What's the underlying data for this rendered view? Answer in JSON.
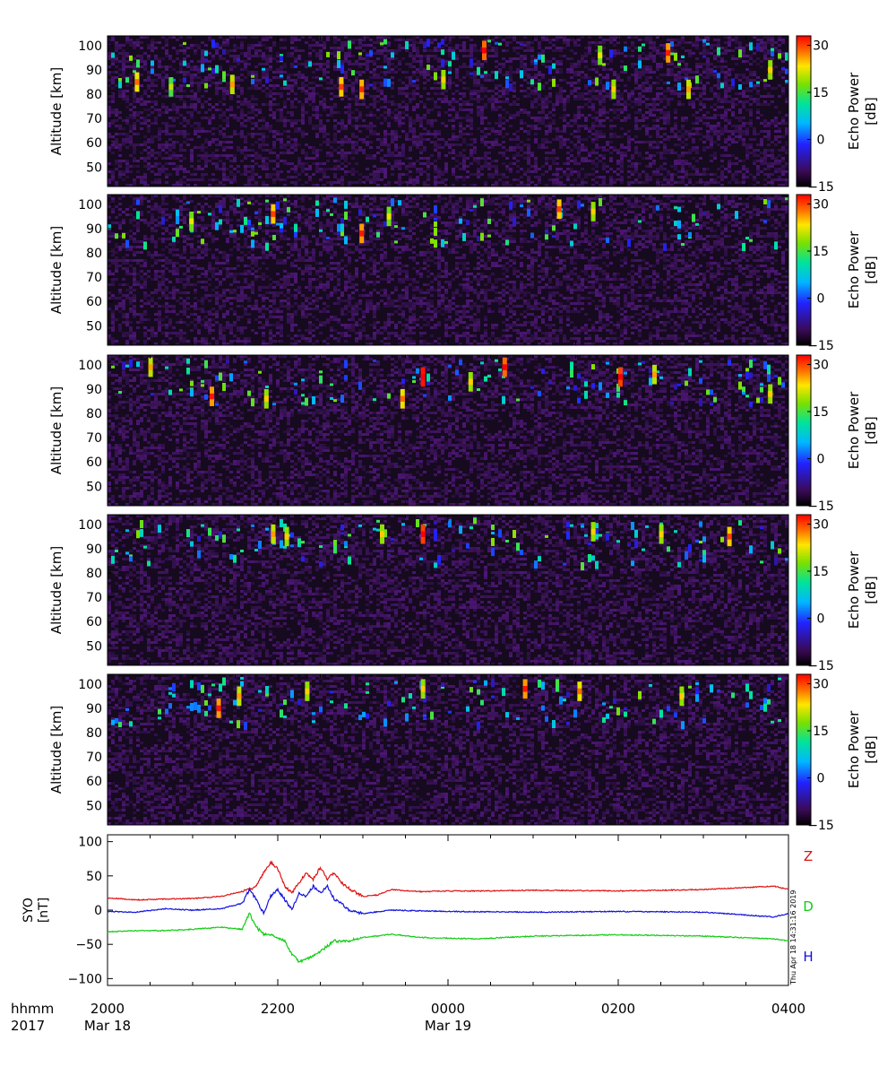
{
  "figure": {
    "time_label_row1": "hhmm",
    "time_label_row2": "2017",
    "stamp": "Thu Apr 18 14:31:16 2019"
  },
  "chart_data": [
    {
      "type": "heatmap",
      "panel": 1,
      "ylabel": "Altitude [km]",
      "yticks": [
        50,
        60,
        70,
        80,
        90,
        100
      ],
      "ylim": [
        42,
        104
      ],
      "colorbar": {
        "label": "Echo Power",
        "unit": "[dB]",
        "ticks": [
          30,
          15,
          0,
          -15
        ],
        "range": [
          -15,
          33
        ]
      },
      "features": [
        {
          "x": 0.04,
          "alt": 85,
          "db": 22
        },
        {
          "x": 0.09,
          "alt": 83,
          "db": 14
        },
        {
          "x": 0.18,
          "alt": 84,
          "db": 20
        },
        {
          "x": 0.34,
          "alt": 83,
          "db": 24
        },
        {
          "x": 0.37,
          "alt": 82,
          "db": 25
        },
        {
          "x": 0.49,
          "alt": 86,
          "db": 18
        },
        {
          "x": 0.55,
          "alt": 98,
          "db": 28
        },
        {
          "x": 0.72,
          "alt": 96,
          "db": 16
        },
        {
          "x": 0.74,
          "alt": 82,
          "db": 18
        },
        {
          "x": 0.82,
          "alt": 97,
          "db": 26
        },
        {
          "x": 0.85,
          "alt": 82,
          "db": 20
        },
        {
          "x": 0.97,
          "alt": 90,
          "db": 18
        }
      ]
    },
    {
      "type": "heatmap",
      "panel": 2,
      "ylabel": "Altitude [km]",
      "yticks": [
        50,
        60,
        70,
        80,
        90,
        100
      ],
      "ylim": [
        42,
        104
      ],
      "colorbar": {
        "label": "Echo Power",
        "unit": "[dB]",
        "ticks": [
          30,
          15,
          0,
          -15
        ],
        "range": [
          -15,
          33
        ]
      },
      "features": [
        {
          "x": 0.12,
          "alt": 93,
          "db": 16
        },
        {
          "x": 0.24,
          "alt": 96,
          "db": 24
        },
        {
          "x": 0.37,
          "alt": 88,
          "db": 26
        },
        {
          "x": 0.41,
          "alt": 95,
          "db": 16
        },
        {
          "x": 0.66,
          "alt": 98,
          "db": 24
        },
        {
          "x": 0.71,
          "alt": 97,
          "db": 18
        }
      ]
    },
    {
      "type": "heatmap",
      "panel": 3,
      "ylabel": "Altitude [km]",
      "yticks": [
        50,
        60,
        70,
        80,
        90,
        100
      ],
      "ylim": [
        42,
        104
      ],
      "colorbar": {
        "label": "Echo Power",
        "unit": "[dB]",
        "ticks": [
          30,
          15,
          0,
          -15
        ],
        "range": [
          -15,
          33
        ]
      },
      "features": [
        {
          "x": 0.06,
          "alt": 99,
          "db": 20
        },
        {
          "x": 0.15,
          "alt": 87,
          "db": 26
        },
        {
          "x": 0.23,
          "alt": 86,
          "db": 18
        },
        {
          "x": 0.43,
          "alt": 86,
          "db": 22
        },
        {
          "x": 0.46,
          "alt": 95,
          "db": 32
        },
        {
          "x": 0.53,
          "alt": 93,
          "db": 18
        },
        {
          "x": 0.58,
          "alt": 99,
          "db": 28
        },
        {
          "x": 0.75,
          "alt": 95,
          "db": 30
        },
        {
          "x": 0.8,
          "alt": 96,
          "db": 20
        },
        {
          "x": 0.97,
          "alt": 88,
          "db": 18
        }
      ]
    },
    {
      "type": "heatmap",
      "panel": 4,
      "ylabel": "Altitude [km]",
      "yticks": [
        50,
        60,
        70,
        80,
        90,
        100
      ],
      "ylim": [
        42,
        104
      ],
      "colorbar": {
        "label": "Echo Power",
        "unit": "[dB]",
        "ticks": [
          30,
          15,
          0,
          -15
        ],
        "range": [
          -15,
          33
        ]
      },
      "features": [
        {
          "x": 0.24,
          "alt": 96,
          "db": 20
        },
        {
          "x": 0.26,
          "alt": 95,
          "db": 18
        },
        {
          "x": 0.4,
          "alt": 96,
          "db": 18
        },
        {
          "x": 0.46,
          "alt": 96,
          "db": 30
        },
        {
          "x": 0.71,
          "alt": 97,
          "db": 18
        },
        {
          "x": 0.81,
          "alt": 96,
          "db": 18
        },
        {
          "x": 0.91,
          "alt": 95,
          "db": 24
        }
      ]
    },
    {
      "type": "heatmap",
      "panel": 5,
      "ylabel": "Altitude [km]",
      "yticks": [
        50,
        60,
        70,
        80,
        90,
        100
      ],
      "ylim": [
        42,
        104
      ],
      "colorbar": {
        "label": "Echo Power",
        "unit": "[dB]",
        "ticks": [
          30,
          15,
          0,
          -15
        ],
        "range": [
          -15,
          33
        ]
      },
      "features": [
        {
          "x": 0.19,
          "alt": 95,
          "db": 20
        },
        {
          "x": 0.16,
          "alt": 90,
          "db": 26
        },
        {
          "x": 0.29,
          "alt": 97,
          "db": 18
        },
        {
          "x": 0.46,
          "alt": 98,
          "db": 18
        },
        {
          "x": 0.61,
          "alt": 98,
          "db": 26
        },
        {
          "x": 0.69,
          "alt": 97,
          "db": 22
        },
        {
          "x": 0.84,
          "alt": 95,
          "db": 18
        }
      ]
    },
    {
      "type": "line",
      "panel": 6,
      "ylabel_row1": "SYO",
      "ylabel_row2": "[nT]",
      "yticks": [
        100,
        50,
        0,
        -50,
        -100
      ],
      "ylim": [
        -110,
        110
      ],
      "xticks": [
        {
          "t": 0,
          "label": "2000",
          "date": "Mar 18"
        },
        {
          "t": 120,
          "label": "2200",
          "date": ""
        },
        {
          "t": 240,
          "label": "0000",
          "date": "Mar 19"
        },
        {
          "t": 360,
          "label": "0200",
          "date": ""
        },
        {
          "t": 480,
          "label": "0400",
          "date": ""
        }
      ],
      "xlim_minutes": [
        0,
        480
      ],
      "series": [
        {
          "name": "Z",
          "color": "#dd1111",
          "x": [
            0,
            20,
            40,
            60,
            80,
            90,
            100,
            105,
            110,
            115,
            120,
            125,
            130,
            135,
            140,
            145,
            150,
            155,
            160,
            165,
            170,
            180,
            190,
            200,
            220,
            240,
            260,
            300,
            360,
            420,
            470,
            480
          ],
          "y": [
            18,
            15,
            16,
            17,
            20,
            25,
            30,
            35,
            55,
            70,
            60,
            35,
            25,
            40,
            55,
            45,
            62,
            45,
            55,
            40,
            32,
            20,
            22,
            30,
            27,
            28,
            28,
            29,
            28,
            30,
            35,
            30
          ]
        },
        {
          "name": "D",
          "color": "#11cc11",
          "x": [
            0,
            20,
            40,
            60,
            80,
            95,
            100,
            105,
            110,
            115,
            120,
            125,
            130,
            135,
            140,
            150,
            160,
            170,
            180,
            190,
            200,
            220,
            260,
            300,
            360,
            420,
            470,
            480
          ],
          "y": [
            -32,
            -30,
            -30,
            -28,
            -25,
            -28,
            -5,
            -25,
            -35,
            -35,
            -40,
            -45,
            -65,
            -75,
            -72,
            -60,
            -45,
            -45,
            -40,
            -38,
            -35,
            -40,
            -42,
            -38,
            -36,
            -38,
            -42,
            -45
          ]
        },
        {
          "name": "H",
          "color": "#1111dd",
          "x": [
            0,
            20,
            40,
            60,
            80,
            95,
            100,
            105,
            110,
            115,
            120,
            125,
            130,
            135,
            140,
            145,
            150,
            155,
            160,
            165,
            170,
            180,
            200,
            240,
            300,
            360,
            420,
            470,
            480
          ],
          "y": [
            -2,
            -3,
            2,
            0,
            2,
            10,
            30,
            15,
            -5,
            20,
            30,
            15,
            0,
            25,
            20,
            35,
            25,
            35,
            15,
            10,
            0,
            -5,
            0,
            -2,
            -3,
            -2,
            -3,
            -10,
            -5
          ]
        }
      ]
    }
  ]
}
